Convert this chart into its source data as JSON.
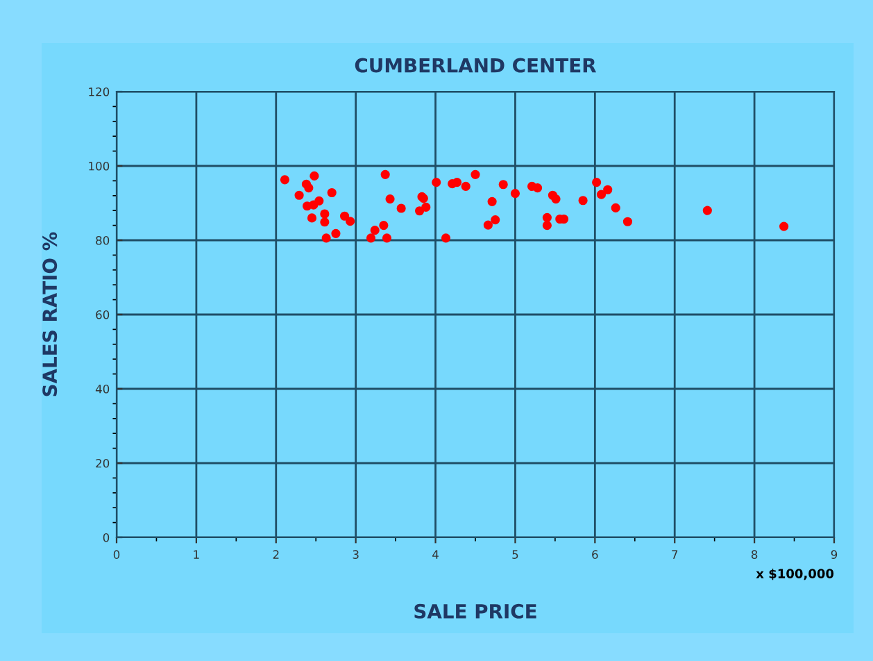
{
  "chart_data": {
    "type": "scatter",
    "title": "CUMBERLAND CENTER",
    "xlabel": "SALE PRICE",
    "ylabel": "SALES RATIO %",
    "annotations": [
      "x $100,000"
    ],
    "series": [
      {
        "color": "#ff0000",
        "x": [
          2.11,
          2.48,
          2.38,
          2.41,
          2.29,
          2.7,
          2.54,
          2.39,
          2.47,
          2.61,
          2.61,
          2.45,
          2.86,
          2.93,
          2.75,
          2.63,
          3.37,
          3.43,
          3.57,
          3.83,
          3.85,
          3.8,
          3.88,
          3.35,
          3.24,
          3.19,
          3.39,
          4.01,
          4.13,
          4.21,
          4.27,
          4.38,
          4.5,
          4.85,
          4.71,
          4.75,
          4.66,
          5.0,
          5.21,
          5.28,
          5.47,
          5.51,
          5.4,
          5.4,
          5.56,
          5.61,
          6.02,
          6.08,
          6.16,
          5.85,
          6.26,
          6.41,
          7.41,
          8.37
        ],
        "values": [
          96.3,
          97.3,
          95.1,
          94.1,
          92.1,
          92.8,
          90.6,
          89.2,
          89.5,
          87.1,
          84.9,
          86.0,
          86.5,
          85.1,
          81.8,
          80.6,
          97.7,
          91.1,
          88.6,
          91.7,
          91.3,
          87.9,
          88.9,
          84.0,
          82.7,
          80.6,
          80.6,
          95.6,
          80.6,
          95.2,
          95.6,
          94.5,
          97.7,
          95.0,
          90.4,
          85.5,
          84.1,
          92.6,
          94.5,
          94.1,
          92.1,
          91.1,
          86.1,
          84.0,
          85.7,
          85.7,
          95.6,
          92.3,
          93.6,
          90.7,
          88.7,
          85.0,
          88.0,
          83.7
        ]
      }
    ],
    "xlim": [
      0,
      9
    ],
    "xticks": [
      0,
      1,
      2,
      3,
      4,
      5,
      6,
      7,
      8,
      9
    ],
    "ylim": [
      0,
      120
    ],
    "yticks": [
      0,
      20,
      40,
      60,
      80,
      100,
      120
    ],
    "grid": true,
    "marker": "circle",
    "legend": false
  }
}
